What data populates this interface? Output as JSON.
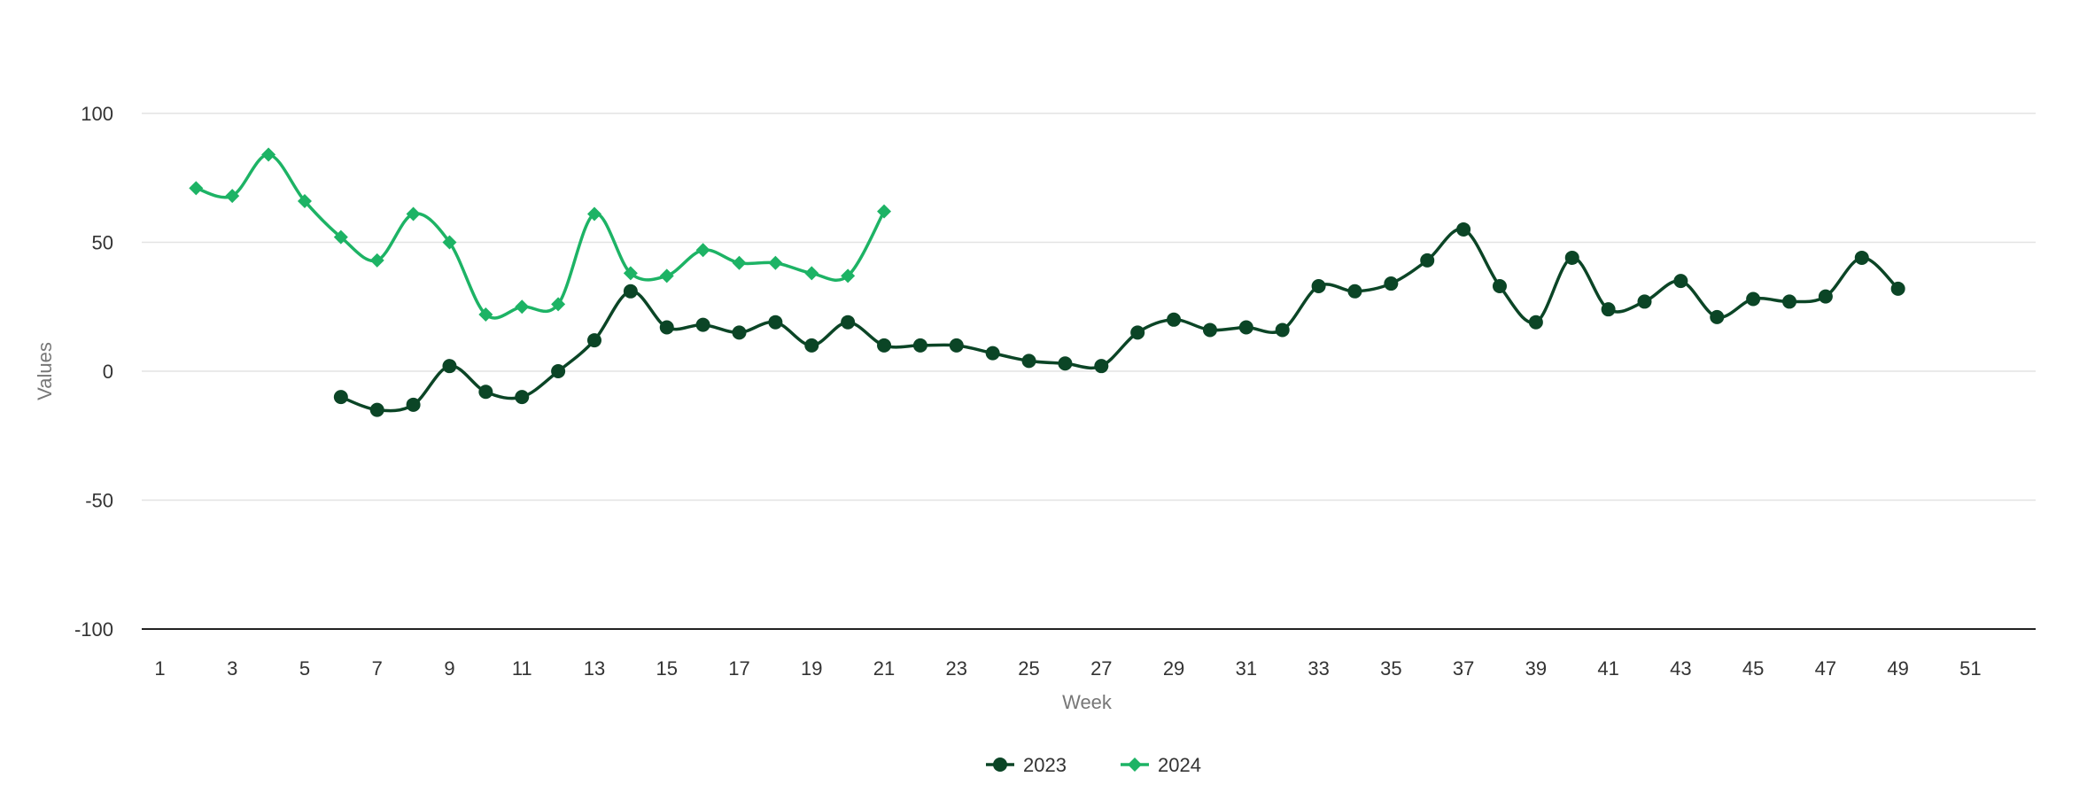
{
  "chart_data": {
    "type": "line",
    "title": "",
    "xlabel": "Week",
    "ylabel": "Values",
    "xlim": [
      0.5,
      52.8
    ],
    "ylim": [
      -100,
      100
    ],
    "x_ticks": [
      1,
      3,
      5,
      7,
      9,
      11,
      13,
      15,
      17,
      19,
      21,
      23,
      25,
      27,
      29,
      31,
      33,
      35,
      37,
      39,
      41,
      43,
      45,
      47,
      49,
      51
    ],
    "y_ticks": [
      -100,
      -50,
      0,
      50,
      100
    ],
    "grid": true,
    "smooth": true,
    "legend": {
      "position": "bottom-center"
    },
    "series": [
      {
        "name": "2023",
        "color": "#0b4526",
        "marker": "circle",
        "x": [
          6,
          7,
          8,
          9,
          10,
          11,
          12,
          13,
          14,
          15,
          16,
          17,
          18,
          19,
          20,
          21,
          22,
          23,
          24,
          25,
          26,
          27,
          28,
          29,
          30,
          31,
          32,
          33,
          34,
          35,
          36,
          37,
          38,
          39,
          40,
          41,
          42,
          43,
          44,
          45,
          46,
          47,
          48,
          49
        ],
        "values": [
          -10,
          -15,
          -13,
          2,
          -8,
          -10,
          0,
          12,
          31,
          17,
          18,
          15,
          19,
          10,
          19,
          10,
          10,
          10,
          7,
          4,
          3,
          2,
          15,
          20,
          16,
          17,
          16,
          33,
          31,
          34,
          43,
          55,
          33,
          19,
          44,
          24,
          27,
          35,
          21,
          28,
          27,
          29,
          44,
          32
        ]
      },
      {
        "name": "2024",
        "color": "#1db365",
        "marker": "diamond",
        "x": [
          2,
          3,
          4,
          5,
          6,
          7,
          8,
          9,
          10,
          11,
          12,
          13,
          14,
          15,
          16,
          17,
          18,
          19,
          20,
          21
        ],
        "values": [
          71,
          68,
          84,
          66,
          52,
          43,
          61,
          50,
          22,
          25,
          26,
          61,
          38,
          37,
          47,
          42,
          42,
          38,
          37,
          62
        ]
      }
    ]
  }
}
